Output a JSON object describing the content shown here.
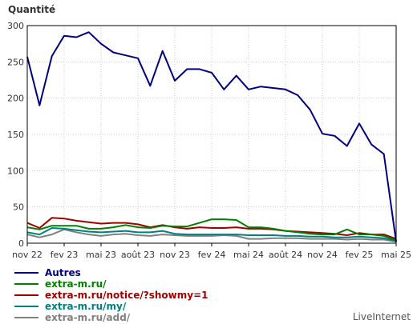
{
  "chart_data": {
    "type": "line",
    "ylabel": "Quantité",
    "ylim": [
      0,
      300
    ],
    "yticks": [
      0,
      50,
      100,
      150,
      200,
      250,
      300
    ],
    "x_labels": [
      "nov 22",
      "fev 23",
      "mai 23",
      "août 23",
      "nov 23",
      "fev 24",
      "mai 24",
      "août 24",
      "nov 24",
      "fev 25",
      "mai 25"
    ],
    "grid": true,
    "legend_position": "bottom-left",
    "series": [
      {
        "name": "Autres",
        "color": "#000080",
        "values": [
          257,
          190,
          258,
          286,
          284,
          291,
          275,
          263,
          259,
          255,
          217,
          265,
          224,
          240,
          240,
          235,
          212,
          231,
          212,
          216,
          214,
          212,
          204,
          184,
          151,
          148,
          134,
          165,
          136,
          123,
          2
        ]
      },
      {
        "name": "extra-m.ru/",
        "color": "#008000",
        "values": [
          22,
          19,
          24,
          24,
          24,
          20,
          20,
          22,
          25,
          22,
          21,
          24,
          23,
          23,
          28,
          33,
          33,
          32,
          22,
          22,
          20,
          17,
          15,
          13,
          12,
          12,
          19,
          12,
          12,
          10,
          4
        ]
      },
      {
        "name": "extra-m.ru/notice/?showmy=1",
        "color": "#a00000",
        "values": [
          28,
          21,
          35,
          34,
          31,
          29,
          27,
          28,
          28,
          26,
          22,
          25,
          22,
          20,
          22,
          21,
          21,
          22,
          20,
          20,
          19,
          17,
          16,
          15,
          14,
          13,
          11,
          14,
          12,
          12,
          6
        ]
      },
      {
        "name": "extra-m.ru/my/",
        "color": "#008080",
        "values": [
          15,
          12,
          21,
          20,
          18,
          16,
          15,
          16,
          17,
          15,
          15,
          17,
          13,
          12,
          12,
          12,
          12,
          12,
          11,
          11,
          11,
          10,
          10,
          9,
          9,
          8,
          8,
          9,
          8,
          7,
          3
        ]
      },
      {
        "name": "extra-m.ru/add/",
        "color": "#808080",
        "values": [
          12,
          8,
          12,
          19,
          15,
          12,
          10,
          12,
          13,
          11,
          10,
          12,
          11,
          10,
          10,
          10,
          11,
          10,
          6,
          6,
          7,
          7,
          7,
          6,
          6,
          6,
          5,
          6,
          5,
          5,
          2
        ]
      }
    ]
  },
  "brand": "LiveInternet"
}
